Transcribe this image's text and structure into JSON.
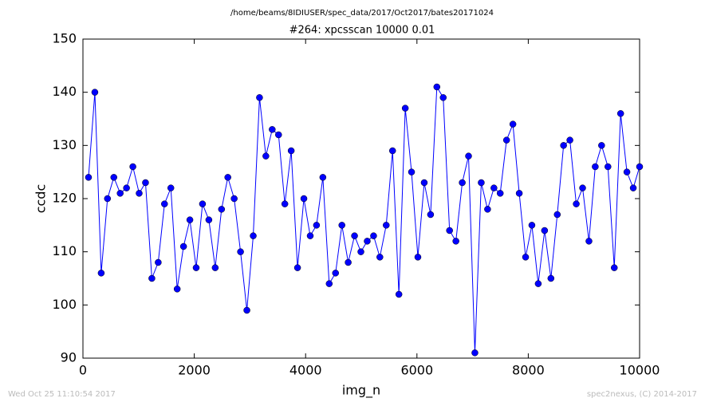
{
  "chart_data": {
    "type": "line",
    "suptitle": "/home/beams/8IDIUSER/spec_data/2017/Oct2017/bates20171024",
    "title": "#264: xpcsscan 10000 0.01",
    "x_label": "img_n",
    "y_label": "ccdc",
    "x": [
      100,
      214,
      328,
      441,
      555,
      669,
      783,
      897,
      1010,
      1124,
      1238,
      1352,
      1465,
      1579,
      1693,
      1807,
      1921,
      2034,
      2148,
      2262,
      2376,
      2490,
      2603,
      2717,
      2831,
      2945,
      3059,
      3172,
      3286,
      3400,
      3514,
      3627,
      3741,
      3855,
      3969,
      4083,
      4196,
      4310,
      4424,
      4538,
      4652,
      4765,
      4879,
      4993,
      5107,
      5221,
      5334,
      5448,
      5562,
      5676,
      5790,
      5903,
      6017,
      6131,
      6245,
      6358,
      6472,
      6586,
      6700,
      6814,
      6927,
      7041,
      7155,
      7269,
      7383,
      7496,
      7610,
      7724,
      7838,
      7952,
      8065,
      8179,
      8293,
      8407,
      8521,
      8634,
      8748,
      8862,
      8976,
      9090,
      9203,
      9317,
      9431,
      9545,
      9659,
      9772,
      9886,
      10000
    ],
    "series": [
      {
        "color": "#0000ff",
        "values": [
          124,
          140,
          106,
          120,
          124,
          121,
          122,
          126,
          121,
          123,
          105,
          108,
          119,
          122,
          103,
          111,
          116,
          107,
          119,
          116,
          107,
          118,
          124,
          120,
          110,
          99,
          113,
          139,
          128,
          133,
          132,
          119,
          129,
          107,
          120,
          113,
          115,
          124,
          104,
          106,
          115,
          108,
          113,
          110,
          112,
          113,
          109,
          115,
          129,
          102,
          137,
          125,
          109,
          123,
          117,
          141,
          139,
          114,
          112,
          123,
          128,
          91,
          123,
          118,
          122,
          121,
          131,
          134,
          121,
          109,
          115,
          104,
          114,
          105,
          117,
          130,
          131,
          119,
          122,
          112,
          126,
          130,
          126,
          107,
          136,
          125,
          122,
          126
        ]
      }
    ],
    "xlim": [
      0,
      10000
    ],
    "xticks": [
      0,
      2000,
      4000,
      6000,
      8000,
      10000
    ],
    "ylim": [
      90,
      150
    ],
    "yticks": [
      90,
      100,
      110,
      120,
      130,
      140,
      150
    ]
  },
  "footer": {
    "left": "Wed Oct 25 11:10:54 2017",
    "right": "spec2nexus, (C) 2014-2017"
  }
}
